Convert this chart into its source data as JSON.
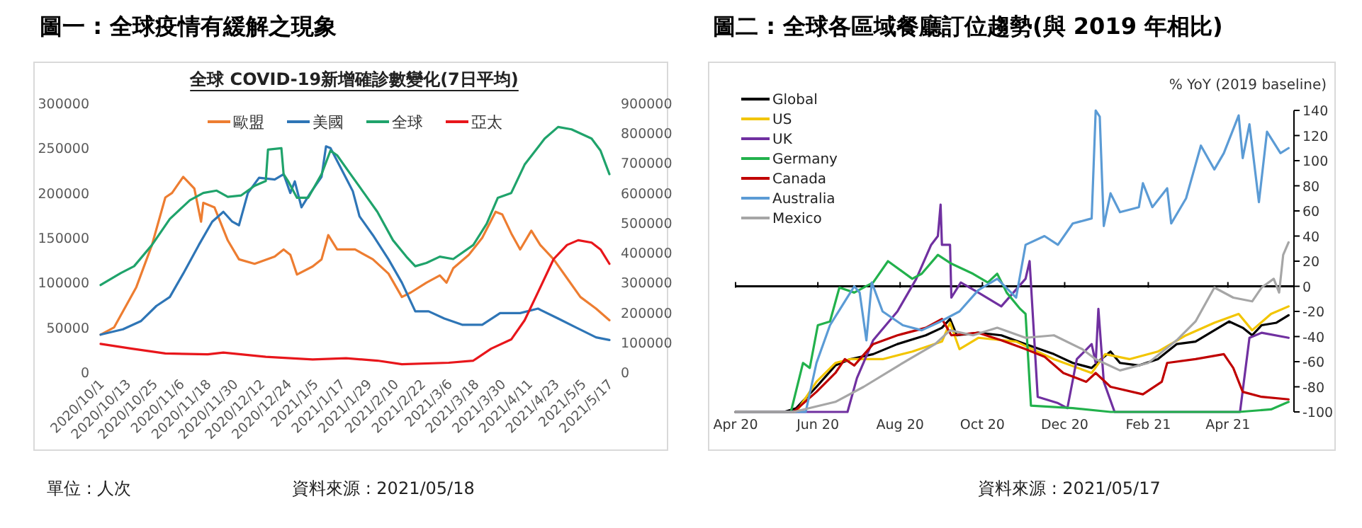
{
  "chart_data": [
    {
      "type": "line",
      "title": "圖一 : 全球疫情有緩解之現象",
      "subtitle": "全球 COVID-19新增確診數變化(7日平均)",
      "legend": "top",
      "grid": false,
      "xlim": [
        "2020-10-01",
        "2021-05-17"
      ],
      "xticks": [
        {
          "value": "2020-10-01",
          "label": "2020/10/1"
        },
        {
          "value": "2020-10-13",
          "label": "2020/10/13"
        },
        {
          "value": "2020-10-25",
          "label": "2020/10/25"
        },
        {
          "value": "2020-11-06",
          "label": "2020/11/6"
        },
        {
          "value": "2020-11-18",
          "label": "2020/11/18"
        },
        {
          "value": "2020-11-30",
          "label": "2020/11/30"
        },
        {
          "value": "2020-12-12",
          "label": "2020/12/12"
        },
        {
          "value": "2020-12-24",
          "label": "2020/12/24"
        },
        {
          "value": "2021-01-05",
          "label": "2021/1/5"
        },
        {
          "value": "2021-01-17",
          "label": "2021/1/17"
        },
        {
          "value": "2021-01-29",
          "label": "2021/1/29"
        },
        {
          "value": "2021-02-10",
          "label": "2021/2/10"
        },
        {
          "value": "2021-02-22",
          "label": "2021/2/22"
        },
        {
          "value": "2021-03-06",
          "label": "2021/3/6"
        },
        {
          "value": "2021-03-18",
          "label": "2021/3/18"
        },
        {
          "value": "2021-03-30",
          "label": "2021/3/30"
        },
        {
          "value": "2021-04-11",
          "label": "2021/4/11"
        },
        {
          "value": "2021-04-23",
          "label": "2021/4/23"
        },
        {
          "value": "2021-05-05",
          "label": "2021/5/5"
        },
        {
          "value": "2021-05-17",
          "label": "2021/5/17"
        }
      ],
      "ylim": [
        0,
        300000
      ],
      "yticks": [
        0,
        50000,
        100000,
        150000,
        200000,
        250000,
        300000
      ],
      "y2lim": [
        0,
        900000
      ],
      "y2ticks": [
        0,
        100000,
        200000,
        300000,
        400000,
        500000,
        600000,
        700000,
        800000,
        900000
      ],
      "series": [
        {
          "name": "歐盟",
          "color": "#ed7d31",
          "x": [
            "2020-10-01",
            "2020-10-07",
            "2020-10-17",
            "2020-10-24",
            "2020-10-30",
            "2020-11-02",
            "2020-11-07",
            "2020-11-12",
            "2020-11-15",
            "2020-11-16",
            "2020-11-21",
            "2020-11-27",
            "2020-12-02",
            "2020-12-09",
            "2020-12-18",
            "2020-12-22",
            "2020-12-25",
            "2020-12-28",
            "2021-01-04",
            "2021-01-08",
            "2021-01-11",
            "2021-01-15",
            "2021-01-23",
            "2021-01-31",
            "2021-02-07",
            "2021-02-13",
            "2021-02-17",
            "2021-02-24",
            "2021-03-02",
            "2021-03-05",
            "2021-03-08",
            "2021-03-15",
            "2021-03-21",
            "2021-03-27",
            "2021-03-30",
            "2021-04-03",
            "2021-04-07",
            "2021-04-12",
            "2021-04-16",
            "2021-04-22",
            "2021-04-28",
            "2021-05-04",
            "2021-05-11",
            "2021-05-17"
          ],
          "values": [
            42000,
            50000,
            95000,
            142000,
            195000,
            200000,
            218000,
            205000,
            168000,
            189000,
            184000,
            147000,
            126000,
            121000,
            129000,
            137000,
            131000,
            109000,
            118000,
            126000,
            153000,
            137000,
            137000,
            126000,
            110000,
            84000,
            89000,
            100000,
            108000,
            100000,
            116000,
            131000,
            150000,
            179000,
            176000,
            155000,
            137000,
            158000,
            142000,
            126000,
            105000,
            84000,
            71000,
            58000
          ]
        },
        {
          "name": "美國",
          "color": "#2e75b6",
          "x": [
            "2020-10-01",
            "2020-10-11",
            "2020-10-19",
            "2020-10-26",
            "2020-11-01",
            "2020-11-07",
            "2020-11-14",
            "2020-11-20",
            "2020-11-25",
            "2020-11-29",
            "2020-12-02",
            "2020-12-06",
            "2020-12-11",
            "2020-12-18",
            "2020-12-22",
            "2020-12-25",
            "2020-12-27",
            "2020-12-30",
            "2021-01-03",
            "2021-01-08",
            "2021-01-10",
            "2021-01-12",
            "2021-01-16",
            "2021-01-22",
            "2021-01-25",
            "2021-01-31",
            "2021-02-07",
            "2021-02-13",
            "2021-02-19",
            "2021-02-25",
            "2021-03-04",
            "2021-03-12",
            "2021-03-21",
            "2021-03-29",
            "2021-04-07",
            "2021-04-15",
            "2021-04-24",
            "2021-05-02",
            "2021-05-11",
            "2021-05-17"
          ],
          "values": [
            42000,
            48000,
            57000,
            74000,
            84000,
            110000,
            142000,
            168000,
            179000,
            168000,
            164000,
            200000,
            217000,
            215000,
            221000,
            200000,
            213000,
            184000,
            200000,
            218000,
            252000,
            250000,
            231000,
            202000,
            174000,
            153000,
            126000,
            100000,
            68000,
            68000,
            60000,
            53000,
            53000,
            66000,
            66000,
            71000,
            60000,
            50000,
            39000,
            36000
          ]
        },
        {
          "name": "全球",
          "color": "#1fa36b",
          "axis": "y2",
          "x": [
            "2020-10-01",
            "2020-10-10",
            "2020-10-16",
            "2020-10-24",
            "2020-11-01",
            "2020-11-10",
            "2020-11-16",
            "2020-11-22",
            "2020-11-27",
            "2020-12-03",
            "2020-12-09",
            "2020-12-14",
            "2020-12-15",
            "2020-12-21",
            "2020-12-22",
            "2020-12-24",
            "2020-12-28",
            "2021-01-02",
            "2021-01-08",
            "2021-01-12",
            "2021-01-15",
            "2021-01-21",
            "2021-01-27",
            "2021-02-02",
            "2021-02-09",
            "2021-02-15",
            "2021-02-19",
            "2021-02-24",
            "2021-03-02",
            "2021-03-08",
            "2021-03-17",
            "2021-03-23",
            "2021-03-28",
            "2021-04-03",
            "2021-04-09",
            "2021-04-18",
            "2021-04-24",
            "2021-04-30",
            "2021-05-09",
            "2021-05-13",
            "2021-05-17"
          ],
          "values": [
            292000,
            332000,
            355000,
            426000,
            513000,
            576000,
            600000,
            608000,
            587000,
            592000,
            624000,
            640000,
            745000,
            750000,
            663000,
            640000,
            584000,
            584000,
            663000,
            742000,
            726000,
            663000,
            600000,
            537000,
            442000,
            387000,
            355000,
            366000,
            387000,
            379000,
            426000,
            497000,
            584000,
            600000,
            695000,
            782000,
            821000,
            813000,
            782000,
            742000,
            663000
          ]
        },
        {
          "name": "亞太",
          "color": "#e8161b",
          "axis": "y2",
          "x": [
            "2020-10-01",
            "2020-10-15",
            "2020-10-30",
            "2020-11-18",
            "2020-11-25",
            "2020-12-14",
            "2021-01-04",
            "2021-01-19",
            "2021-02-02",
            "2021-02-13",
            "2021-03-06",
            "2021-03-17",
            "2021-03-25",
            "2021-04-03",
            "2021-04-09",
            "2021-04-15",
            "2021-04-22",
            "2021-04-28",
            "2021-05-03",
            "2021-05-09",
            "2021-05-13",
            "2021-05-17"
          ],
          "values": [
            95000,
            79000,
            63000,
            60000,
            66000,
            52000,
            43000,
            47000,
            39000,
            27000,
            32000,
            39000,
            79000,
            110000,
            174000,
            268000,
            379000,
            426000,
            442000,
            434000,
            411000,
            363000
          ]
        }
      ],
      "annotations": [
        "單位 : 人次",
        "資料來源 : 2021/05/18"
      ]
    },
    {
      "type": "line",
      "title": "圖二 : 全球各區域餐廳訂位趨勢(與 2019 年相比)",
      "ylabel": "% YoY (2019 baseline)",
      "legend": "top left",
      "grid": false,
      "xlim": [
        "2020-04-01",
        "2021-05-20"
      ],
      "xticks": [
        {
          "value": "2020-04-01",
          "label": "Apr 20"
        },
        {
          "value": "2020-06-01",
          "label": "Jun 20"
        },
        {
          "value": "2020-08-01",
          "label": "Aug 20"
        },
        {
          "value": "2020-10-01",
          "label": "Oct 20"
        },
        {
          "value": "2020-12-01",
          "label": "Dec 20"
        },
        {
          "value": "2021-02-01",
          "label": "Feb 21"
        },
        {
          "value": "2021-04-01",
          "label": "Apr 21"
        }
      ],
      "ylim": [
        -100,
        140
      ],
      "yticks": [
        -100,
        -80,
        -60,
        -40,
        -20,
        0,
        20,
        40,
        60,
        80,
        100,
        120,
        140
      ],
      "ref_lines": [
        {
          "axis": "y",
          "value": 0,
          "color": "#000000"
        }
      ],
      "series": [
        {
          "name": "Global",
          "color": "#000000",
          "x": [
            "2020-04-01",
            "2020-05-07",
            "2020-05-16",
            "2020-05-31",
            "2020-06-14",
            "2020-06-25",
            "2020-07-12",
            "2020-07-30",
            "2020-08-20",
            "2020-09-01",
            "2020-09-07",
            "2020-09-12",
            "2020-09-28",
            "2020-10-15",
            "2020-11-02",
            "2020-11-23",
            "2020-12-07",
            "2020-12-21",
            "2020-12-28",
            "2021-01-04",
            "2021-01-11",
            "2021-01-25",
            "2021-02-08",
            "2021-02-22",
            "2021-03-08",
            "2021-03-22",
            "2021-04-02",
            "2021-04-12",
            "2021-04-19",
            "2021-04-26",
            "2021-05-07",
            "2021-05-16"
          ],
          "values": [
            -100,
            -100,
            -97,
            -80,
            -63,
            -58,
            -54,
            -46,
            -39,
            -33,
            -26,
            -39,
            -37,
            -39,
            -46,
            -54,
            -61,
            -65,
            -58,
            -52,
            -61,
            -63,
            -58,
            -46,
            -44,
            -35,
            -28,
            -33,
            -39,
            -31,
            -29,
            -23
          ]
        },
        {
          "name": "US",
          "color": "#f2c500",
          "x": [
            "2020-04-01",
            "2020-05-16",
            "2020-05-31",
            "2020-06-14",
            "2020-06-25",
            "2020-07-19",
            "2020-08-10",
            "2020-09-01",
            "2020-09-07",
            "2020-09-14",
            "2020-09-28",
            "2020-10-26",
            "2020-11-23",
            "2020-12-21",
            "2020-12-31",
            "2021-01-18",
            "2021-02-08",
            "2021-03-01",
            "2021-03-22",
            "2021-04-09",
            "2021-04-19",
            "2021-05-03",
            "2021-05-16"
          ],
          "values": [
            -100,
            -100,
            -76,
            -61,
            -58,
            -58,
            -52,
            -44,
            -29,
            -50,
            -41,
            -44,
            -58,
            -69,
            -54,
            -58,
            -52,
            -39,
            -29,
            -22,
            -35,
            -22,
            -16
          ]
        },
        {
          "name": "UK",
          "color": "#7030a0",
          "x": [
            "2020-04-01",
            "2020-06-23",
            "2020-06-30",
            "2020-07-12",
            "2020-07-30",
            "2020-08-13",
            "2020-08-24",
            "2020-08-29",
            "2020-08-31",
            "2020-09-01",
            "2020-09-07",
            "2020-09-08",
            "2020-09-15",
            "2020-09-28",
            "2020-10-15",
            "2020-11-02",
            "2020-11-05",
            "2020-11-11",
            "2020-11-26",
            "2020-12-03",
            "2020-12-10",
            "2020-12-21",
            "2020-12-24",
            "2020-12-26",
            "2020-12-30",
            "2021-01-07",
            "2021-04-10",
            "2021-04-17",
            "2021-04-26",
            "2021-05-16"
          ],
          "values": [
            -100,
            -100,
            -73,
            -43,
            -20,
            6,
            33,
            40,
            65,
            33,
            33,
            -9,
            3,
            -5,
            -16,
            6,
            20,
            -88,
            -93,
            -97,
            -58,
            -46,
            -61,
            -18,
            -76,
            -100,
            -100,
            -41,
            -37,
            -41
          ]
        },
        {
          "name": "Germany",
          "color": "#22b14c",
          "x": [
            "2020-04-01",
            "2020-05-12",
            "2020-05-21",
            "2020-05-26",
            "2020-06-01",
            "2020-06-10",
            "2020-06-17",
            "2020-06-28",
            "2020-07-12",
            "2020-07-23",
            "2020-08-10",
            "2020-08-17",
            "2020-08-29",
            "2020-09-08",
            "2020-09-24",
            "2020-10-05",
            "2020-10-12",
            "2020-10-19",
            "2020-10-29",
            "2020-11-02",
            "2020-11-06",
            "2020-12-07",
            "2021-01-04",
            "2021-04-09",
            "2021-05-03",
            "2021-05-16"
          ],
          "values": [
            -100,
            -100,
            -61,
            -65,
            -31,
            -28,
            -1,
            -5,
            3,
            20,
            6,
            10,
            25,
            18,
            10,
            3,
            10,
            -5,
            -18,
            -22,
            -95,
            -97,
            -100,
            -100,
            -98,
            -92
          ]
        },
        {
          "name": "Canada",
          "color": "#c00000",
          "x": [
            "2020-04-01",
            "2020-05-14",
            "2020-05-31",
            "2020-06-14",
            "2020-06-21",
            "2020-06-28",
            "2020-07-12",
            "2020-07-30",
            "2020-08-20",
            "2020-09-01",
            "2020-09-08",
            "2020-09-28",
            "2020-10-15",
            "2020-11-02",
            "2020-11-16",
            "2020-11-30",
            "2020-12-17",
            "2020-12-24",
            "2021-01-04",
            "2021-01-28",
            "2021-02-11",
            "2021-02-15",
            "2021-03-08",
            "2021-03-29",
            "2021-04-05",
            "2021-04-12",
            "2021-04-26",
            "2021-05-16"
          ],
          "values": [
            -100,
            -100,
            -84,
            -69,
            -58,
            -63,
            -46,
            -39,
            -33,
            -26,
            -39,
            -37,
            -43,
            -50,
            -56,
            -69,
            -76,
            -69,
            -80,
            -86,
            -76,
            -61,
            -58,
            -54,
            -65,
            -84,
            -88,
            -90
          ]
        },
        {
          "name": "Australia",
          "color": "#5b9bd5",
          "x": [
            "2020-04-01",
            "2020-05-23",
            "2020-05-31",
            "2020-06-10",
            "2020-06-21",
            "2020-06-28",
            "2020-07-02",
            "2020-07-07",
            "2020-07-11",
            "2020-07-19",
            "2020-08-03",
            "2020-08-17",
            "2020-08-31",
            "2020-09-14",
            "2020-09-28",
            "2020-10-12",
            "2020-10-26",
            "2020-11-02",
            "2020-11-16",
            "2020-11-26",
            "2020-12-07",
            "2020-12-21",
            "2020-12-24",
            "2020-12-27",
            "2020-12-30",
            "2021-01-04",
            "2021-01-11",
            "2021-01-25",
            "2021-01-28",
            "2021-02-04",
            "2021-02-15",
            "2021-02-18",
            "2021-03-01",
            "2021-03-12",
            "2021-03-22",
            "2021-03-29",
            "2021-04-09",
            "2021-04-12",
            "2021-04-17",
            "2021-04-24",
            "2021-04-30",
            "2021-05-10",
            "2021-05-16"
          ],
          "values": [
            -100,
            -100,
            -61,
            -31,
            -12,
            0,
            -5,
            -43,
            3,
            -20,
            -31,
            -35,
            -28,
            -20,
            -3,
            6,
            -9,
            33,
            40,
            33,
            50,
            54,
            140,
            135,
            48,
            74,
            59,
            63,
            82,
            63,
            78,
            50,
            70,
            112,
            93,
            106,
            136,
            102,
            129,
            67,
            123,
            106,
            110
          ]
        },
        {
          "name": "Mexico",
          "color": "#a6a6a6",
          "x": [
            "2020-04-01",
            "2020-05-14",
            "2020-06-14",
            "2020-07-05",
            "2020-08-03",
            "2020-08-27",
            "2020-09-07",
            "2020-09-24",
            "2020-10-12",
            "2020-11-02",
            "2020-11-23",
            "2020-12-14",
            "2020-12-24",
            "2021-01-11",
            "2021-02-01",
            "2021-02-22",
            "2021-03-08",
            "2021-03-22",
            "2021-04-05",
            "2021-04-19",
            "2021-04-26",
            "2021-05-05",
            "2021-05-09",
            "2021-05-12",
            "2021-05-16"
          ],
          "values": [
            -100,
            -100,
            -92,
            -80,
            -61,
            -46,
            -35,
            -39,
            -33,
            -41,
            -39,
            -50,
            -58,
            -67,
            -61,
            -43,
            -28,
            -1,
            -9,
            -12,
            -1,
            6,
            -5,
            25,
            35
          ]
        }
      ],
      "annotations": [
        "資料來源 : 2021/05/17"
      ]
    }
  ]
}
